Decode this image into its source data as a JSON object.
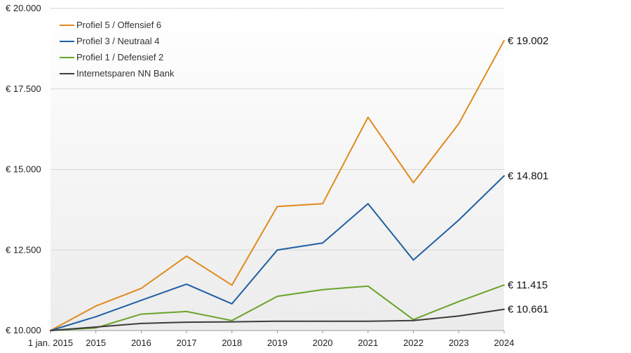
{
  "chart_data": {
    "type": "line",
    "x": [
      "1 jan. 2015",
      "2015",
      "2016",
      "2017",
      "2018",
      "2019",
      "2020",
      "2021",
      "2022",
      "2023",
      "2024"
    ],
    "ylim": [
      10000,
      20000
    ],
    "yticks": [
      10000,
      12500,
      15000,
      17500,
      20000
    ],
    "ytick_labels": [
      "€ 10.000",
      "€ 12.500",
      "€ 15.000",
      "€ 17.500",
      "€ 20.000"
    ],
    "grid": true,
    "legend_position": "top-left",
    "series": [
      {
        "name": "Profiel 5 / Offensief 6",
        "color": "#e08a1e",
        "values": [
          10000,
          10760,
          11310,
          12310,
          11410,
          13850,
          13940,
          16620,
          14590,
          16420,
          19002
        ],
        "end_label": "€ 19.002"
      },
      {
        "name": "Profiel 3 / Neutraal 4",
        "color": "#1f5fa3",
        "values": [
          10000,
          10430,
          10940,
          11440,
          10830,
          12500,
          12720,
          13940,
          12190,
          13430,
          14801
        ],
        "end_label": "€ 14.801"
      },
      {
        "name": "Profiel 1 / Defensief 2",
        "color": "#6aa329",
        "values": [
          10000,
          10080,
          10510,
          10590,
          10310,
          11060,
          11270,
          11380,
          10340,
          10900,
          11415
        ],
        "end_label": "€ 11.415"
      },
      {
        "name": "Internetsparen NN Bank",
        "color": "#3c3c3c",
        "values": [
          10000,
          10110,
          10220,
          10260,
          10270,
          10290,
          10290,
          10290,
          10310,
          10450,
          10661
        ],
        "end_label": "€ 10.661"
      }
    ]
  }
}
